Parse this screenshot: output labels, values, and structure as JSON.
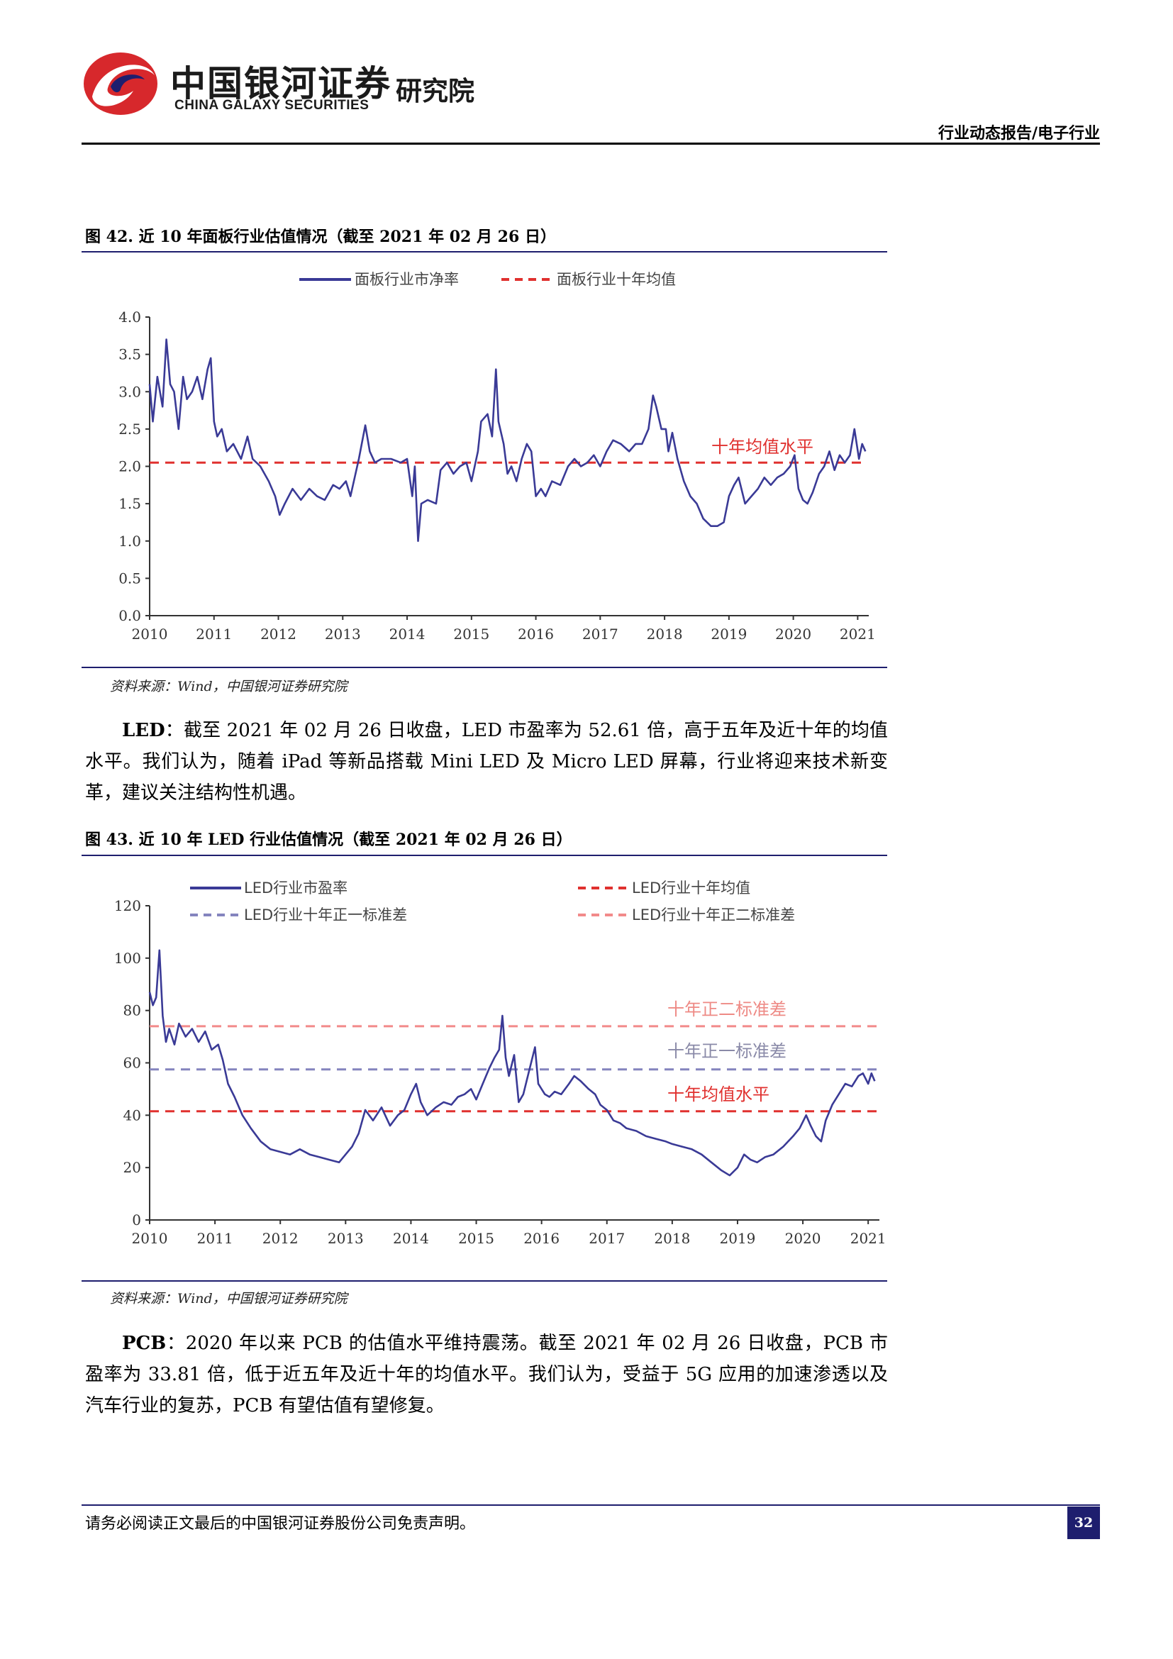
{
  "header": {
    "brand_cn": "中国银河证券",
    "brand_en": "CHINA GALAXY SECURITIES",
    "institute": "研究院",
    "report_type": "行业动态报告/电子行业"
  },
  "chart_data": [
    {
      "type": "line",
      "figure_caption": "图 42. 近 10 年面板行业估值情况（截至 2021 年 02 月 26 日）",
      "x_ticks": [
        "2010",
        "2011",
        "2012",
        "2013",
        "2014",
        "2015",
        "2016",
        "2017",
        "2018",
        "2019",
        "2020",
        "2021"
      ],
      "y_ticks": [
        "0.0",
        "0.5",
        "1.0",
        "1.5",
        "2.0",
        "2.5",
        "3.0",
        "3.5",
        "4.0"
      ],
      "ylim": [
        0,
        4
      ],
      "xlim": [
        2010.0,
        2021.15
      ],
      "series": [
        {
          "name": "面板行业市净率",
          "style": "solid",
          "color": "#3a3a96",
          "points": [
            [
              2010.0,
              3.1
            ],
            [
              2010.05,
              2.6
            ],
            [
              2010.12,
              3.2
            ],
            [
              2010.2,
              2.8
            ],
            [
              2010.26,
              3.7
            ],
            [
              2010.32,
              3.1
            ],
            [
              2010.38,
              3.0
            ],
            [
              2010.45,
              2.5
            ],
            [
              2010.52,
              3.2
            ],
            [
              2010.58,
              2.9
            ],
            [
              2010.66,
              3.0
            ],
            [
              2010.74,
              3.2
            ],
            [
              2010.82,
              2.9
            ],
            [
              2010.9,
              3.3
            ],
            [
              2010.95,
              3.45
            ],
            [
              2011.0,
              2.6
            ],
            [
              2011.05,
              2.4
            ],
            [
              2011.12,
              2.5
            ],
            [
              2011.2,
              2.2
            ],
            [
              2011.3,
              2.3
            ],
            [
              2011.42,
              2.1
            ],
            [
              2011.52,
              2.4
            ],
            [
              2011.6,
              2.1
            ],
            [
              2011.72,
              2.0
            ],
            [
              2011.85,
              1.8
            ],
            [
              2011.95,
              1.6
            ],
            [
              2012.02,
              1.35
            ],
            [
              2012.1,
              1.5
            ],
            [
              2012.22,
              1.7
            ],
            [
              2012.35,
              1.55
            ],
            [
              2012.48,
              1.7
            ],
            [
              2012.6,
              1.6
            ],
            [
              2012.72,
              1.55
            ],
            [
              2012.85,
              1.75
            ],
            [
              2012.95,
              1.7
            ],
            [
              2013.05,
              1.8
            ],
            [
              2013.12,
              1.6
            ],
            [
              2013.25,
              2.1
            ],
            [
              2013.35,
              2.55
            ],
            [
              2013.42,
              2.2
            ],
            [
              2013.5,
              2.05
            ],
            [
              2013.6,
              2.1
            ],
            [
              2013.75,
              2.1
            ],
            [
              2013.9,
              2.05
            ],
            [
              2014.0,
              2.1
            ],
            [
              2014.08,
              1.6
            ],
            [
              2014.12,
              2.0
            ],
            [
              2014.17,
              1.0
            ],
            [
              2014.22,
              1.5
            ],
            [
              2014.32,
              1.55
            ],
            [
              2014.45,
              1.5
            ],
            [
              2014.52,
              1.95
            ],
            [
              2014.62,
              2.05
            ],
            [
              2014.72,
              1.9
            ],
            [
              2014.82,
              2.0
            ],
            [
              2014.92,
              2.05
            ],
            [
              2015.0,
              1.8
            ],
            [
              2015.1,
              2.2
            ],
            [
              2015.15,
              2.6
            ],
            [
              2015.25,
              2.7
            ],
            [
              2015.32,
              2.4
            ],
            [
              2015.38,
              3.3
            ],
            [
              2015.42,
              2.6
            ],
            [
              2015.5,
              2.3
            ],
            [
              2015.56,
              1.9
            ],
            [
              2015.62,
              2.0
            ],
            [
              2015.7,
              1.8
            ],
            [
              2015.78,
              2.1
            ],
            [
              2015.86,
              2.3
            ],
            [
              2015.93,
              2.2
            ],
            [
              2016.0,
              1.6
            ],
            [
              2016.08,
              1.7
            ],
            [
              2016.15,
              1.6
            ],
            [
              2016.25,
              1.8
            ],
            [
              2016.38,
              1.75
            ],
            [
              2016.5,
              2.0
            ],
            [
              2016.6,
              2.1
            ],
            [
              2016.7,
              2.0
            ],
            [
              2016.8,
              2.05
            ],
            [
              2016.9,
              2.15
            ],
            [
              2017.0,
              2.0
            ],
            [
              2017.1,
              2.2
            ],
            [
              2017.2,
              2.35
            ],
            [
              2017.32,
              2.3
            ],
            [
              2017.45,
              2.2
            ],
            [
              2017.55,
              2.3
            ],
            [
              2017.65,
              2.3
            ],
            [
              2017.75,
              2.5
            ],
            [
              2017.82,
              2.95
            ],
            [
              2017.87,
              2.8
            ],
            [
              2017.95,
              2.5
            ],
            [
              2018.02,
              2.5
            ],
            [
              2018.06,
              2.2
            ],
            [
              2018.12,
              2.45
            ],
            [
              2018.2,
              2.1
            ],
            [
              2018.3,
              1.8
            ],
            [
              2018.4,
              1.6
            ],
            [
              2018.5,
              1.5
            ],
            [
              2018.6,
              1.3
            ],
            [
              2018.72,
              1.2
            ],
            [
              2018.82,
              1.2
            ],
            [
              2018.92,
              1.25
            ],
            [
              2019.0,
              1.6
            ],
            [
              2019.08,
              1.75
            ],
            [
              2019.15,
              1.85
            ],
            [
              2019.25,
              1.5
            ],
            [
              2019.35,
              1.6
            ],
            [
              2019.45,
              1.7
            ],
            [
              2019.55,
              1.85
            ],
            [
              2019.65,
              1.75
            ],
            [
              2019.75,
              1.85
            ],
            [
              2019.85,
              1.9
            ],
            [
              2019.95,
              2.0
            ],
            [
              2020.02,
              2.15
            ],
            [
              2020.08,
              1.7
            ],
            [
              2020.15,
              1.55
            ],
            [
              2020.22,
              1.5
            ],
            [
              2020.3,
              1.65
            ],
            [
              2020.4,
              1.9
            ],
            [
              2020.48,
              2.0
            ],
            [
              2020.56,
              2.2
            ],
            [
              2020.64,
              1.95
            ],
            [
              2020.72,
              2.15
            ],
            [
              2020.8,
              2.05
            ],
            [
              2020.88,
              2.15
            ],
            [
              2020.95,
              2.5
            ],
            [
              2021.02,
              2.1
            ],
            [
              2021.07,
              2.3
            ],
            [
              2021.12,
              2.2
            ]
          ]
        },
        {
          "name": "面板行业十年均值",
          "style": "dashed",
          "color": "#e0312f",
          "value": 2.05
        }
      ],
      "annotations": [
        {
          "text": "十年均值水平",
          "color": "#e0312f"
        }
      ],
      "source": "资料来源：Wind，中国银河证券研究院"
    },
    {
      "type": "line",
      "figure_caption": "图 43. 近 10 年 LED 行业估值情况（截至 2021 年 02 月 26 日）",
      "x_ticks": [
        "2010",
        "2011",
        "2012",
        "2013",
        "2014",
        "2015",
        "2016",
        "2017",
        "2018",
        "2019",
        "2020",
        "2021"
      ],
      "y_ticks": [
        "0",
        "20",
        "40",
        "60",
        "80",
        "100",
        "120"
      ],
      "ylim": [
        0,
        120
      ],
      "xlim": [
        2010.0,
        2021.15
      ],
      "series": [
        {
          "name": "LED行业市盈率",
          "style": "solid",
          "color": "#3a3a96",
          "points": [
            [
              2010.0,
              87
            ],
            [
              2010.05,
              82
            ],
            [
              2010.1,
              85
            ],
            [
              2010.15,
              103
            ],
            [
              2010.2,
              78
            ],
            [
              2010.25,
              68
            ],
            [
              2010.3,
              73
            ],
            [
              2010.38,
              67
            ],
            [
              2010.45,
              75
            ],
            [
              2010.55,
              70
            ],
            [
              2010.65,
              73
            ],
            [
              2010.75,
              68
            ],
            [
              2010.85,
              72
            ],
            [
              2010.95,
              65
            ],
            [
              2011.05,
              67
            ],
            [
              2011.12,
              61
            ],
            [
              2011.2,
              52
            ],
            [
              2011.3,
              47
            ],
            [
              2011.42,
              40
            ],
            [
              2011.55,
              35
            ],
            [
              2011.7,
              30
            ],
            [
              2011.85,
              27
            ],
            [
              2012.0,
              26
            ],
            [
              2012.15,
              25
            ],
            [
              2012.3,
              27
            ],
            [
              2012.45,
              25
            ],
            [
              2012.6,
              24
            ],
            [
              2012.75,
              23
            ],
            [
              2012.9,
              22
            ],
            [
              2013.0,
              25
            ],
            [
              2013.1,
              28
            ],
            [
              2013.2,
              33
            ],
            [
              2013.3,
              42
            ],
            [
              2013.42,
              38
            ],
            [
              2013.55,
              43
            ],
            [
              2013.68,
              36
            ],
            [
              2013.8,
              40
            ],
            [
              2013.9,
              42
            ],
            [
              2014.0,
              48
            ],
            [
              2014.08,
              52
            ],
            [
              2014.15,
              45
            ],
            [
              2014.25,
              40
            ],
            [
              2014.38,
              43
            ],
            [
              2014.5,
              45
            ],
            [
              2014.62,
              44
            ],
            [
              2014.72,
              47
            ],
            [
              2014.82,
              48
            ],
            [
              2014.92,
              50
            ],
            [
              2015.0,
              46
            ],
            [
              2015.1,
              52
            ],
            [
              2015.2,
              58
            ],
            [
              2015.28,
              62
            ],
            [
              2015.35,
              65
            ],
            [
              2015.4,
              78
            ],
            [
              2015.45,
              62
            ],
            [
              2015.5,
              55
            ],
            [
              2015.58,
              63
            ],
            [
              2015.65,
              45
            ],
            [
              2015.72,
              48
            ],
            [
              2015.8,
              56
            ],
            [
              2015.9,
              66
            ],
            [
              2015.95,
              52
            ],
            [
              2016.05,
              48
            ],
            [
              2016.12,
              47
            ],
            [
              2016.2,
              49
            ],
            [
              2016.3,
              48
            ],
            [
              2016.42,
              52
            ],
            [
              2016.5,
              55
            ],
            [
              2016.6,
              53
            ],
            [
              2016.72,
              50
            ],
            [
              2016.82,
              48
            ],
            [
              2016.9,
              44
            ],
            [
              2017.0,
              42
            ],
            [
              2017.1,
              38
            ],
            [
              2017.2,
              37
            ],
            [
              2017.3,
              35
            ],
            [
              2017.45,
              34
            ],
            [
              2017.6,
              32
            ],
            [
              2017.75,
              31
            ],
            [
              2017.9,
              30
            ],
            [
              2018.0,
              29
            ],
            [
              2018.15,
              28
            ],
            [
              2018.3,
              27
            ],
            [
              2018.45,
              25
            ],
            [
              2018.6,
              22
            ],
            [
              2018.75,
              19
            ],
            [
              2018.88,
              17
            ],
            [
              2019.0,
              20
            ],
            [
              2019.1,
              25
            ],
            [
              2019.2,
              23
            ],
            [
              2019.3,
              22
            ],
            [
              2019.42,
              24
            ],
            [
              2019.55,
              25
            ],
            [
              2019.7,
              28
            ],
            [
              2019.85,
              32
            ],
            [
              2019.95,
              35
            ],
            [
              2020.05,
              40
            ],
            [
              2020.12,
              36
            ],
            [
              2020.2,
              32
            ],
            [
              2020.28,
              30
            ],
            [
              2020.35,
              38
            ],
            [
              2020.45,
              44
            ],
            [
              2020.55,
              48
            ],
            [
              2020.65,
              52
            ],
            [
              2020.75,
              51
            ],
            [
              2020.85,
              55
            ],
            [
              2020.92,
              56
            ],
            [
              2021.0,
              52
            ],
            [
              2021.05,
              56
            ],
            [
              2021.1,
              53
            ]
          ]
        },
        {
          "name": "LED行业十年均值",
          "style": "dashed",
          "color": "#e0312f",
          "value": 41.5
        },
        {
          "name": "LED行业十年正一标准差",
          "style": "dashed",
          "color": "#8484be",
          "value": 57.5
        },
        {
          "name": "LED行业十年正二标准差",
          "style": "dashed",
          "color": "#f28a8a",
          "value": 74
        }
      ],
      "annotations": [
        {
          "text": "十年正二标准差",
          "color": "#ee8a85"
        },
        {
          "text": "十年正一标准差",
          "color": "#8a8aa8"
        },
        {
          "text": "十年均值水平",
          "color": "#e0312f"
        }
      ],
      "source": "资料来源：Wind，中国银河证券研究院"
    }
  ],
  "paragraphs": {
    "led_label": "LED",
    "led_text": "：截至 2021 年 02 月 26 日收盘，LED 市盈率为 52.61 倍，高于五年及近十年的均值水平。我们认为，随着 iPad 等新品搭载 Mini LED 及 Micro LED 屏幕，行业将迎来技术新变革，建议关注结构性机遇。",
    "pcb_label": "PCB",
    "pcb_text": "：2020 年以来 PCB 的估值水平维持震荡。截至 2021 年 02 月 26 日收盘，PCB 市盈率为 33.81 倍，低于近五年及近十年的均值水平。我们认为，受益于 5G 应用的加速渗透以及汽车行业的复苏，PCB 有望估值有望修复。"
  },
  "footer": {
    "disclaimer": "请务必阅读正文最后的中国银河证券股份公司免责声明。",
    "page_number": "32"
  },
  "colors": {
    "navy": "#1e1e6e",
    "series_line": "#3a3a96",
    "mean_line": "#e0312f",
    "brand_red": "#d7282c"
  }
}
